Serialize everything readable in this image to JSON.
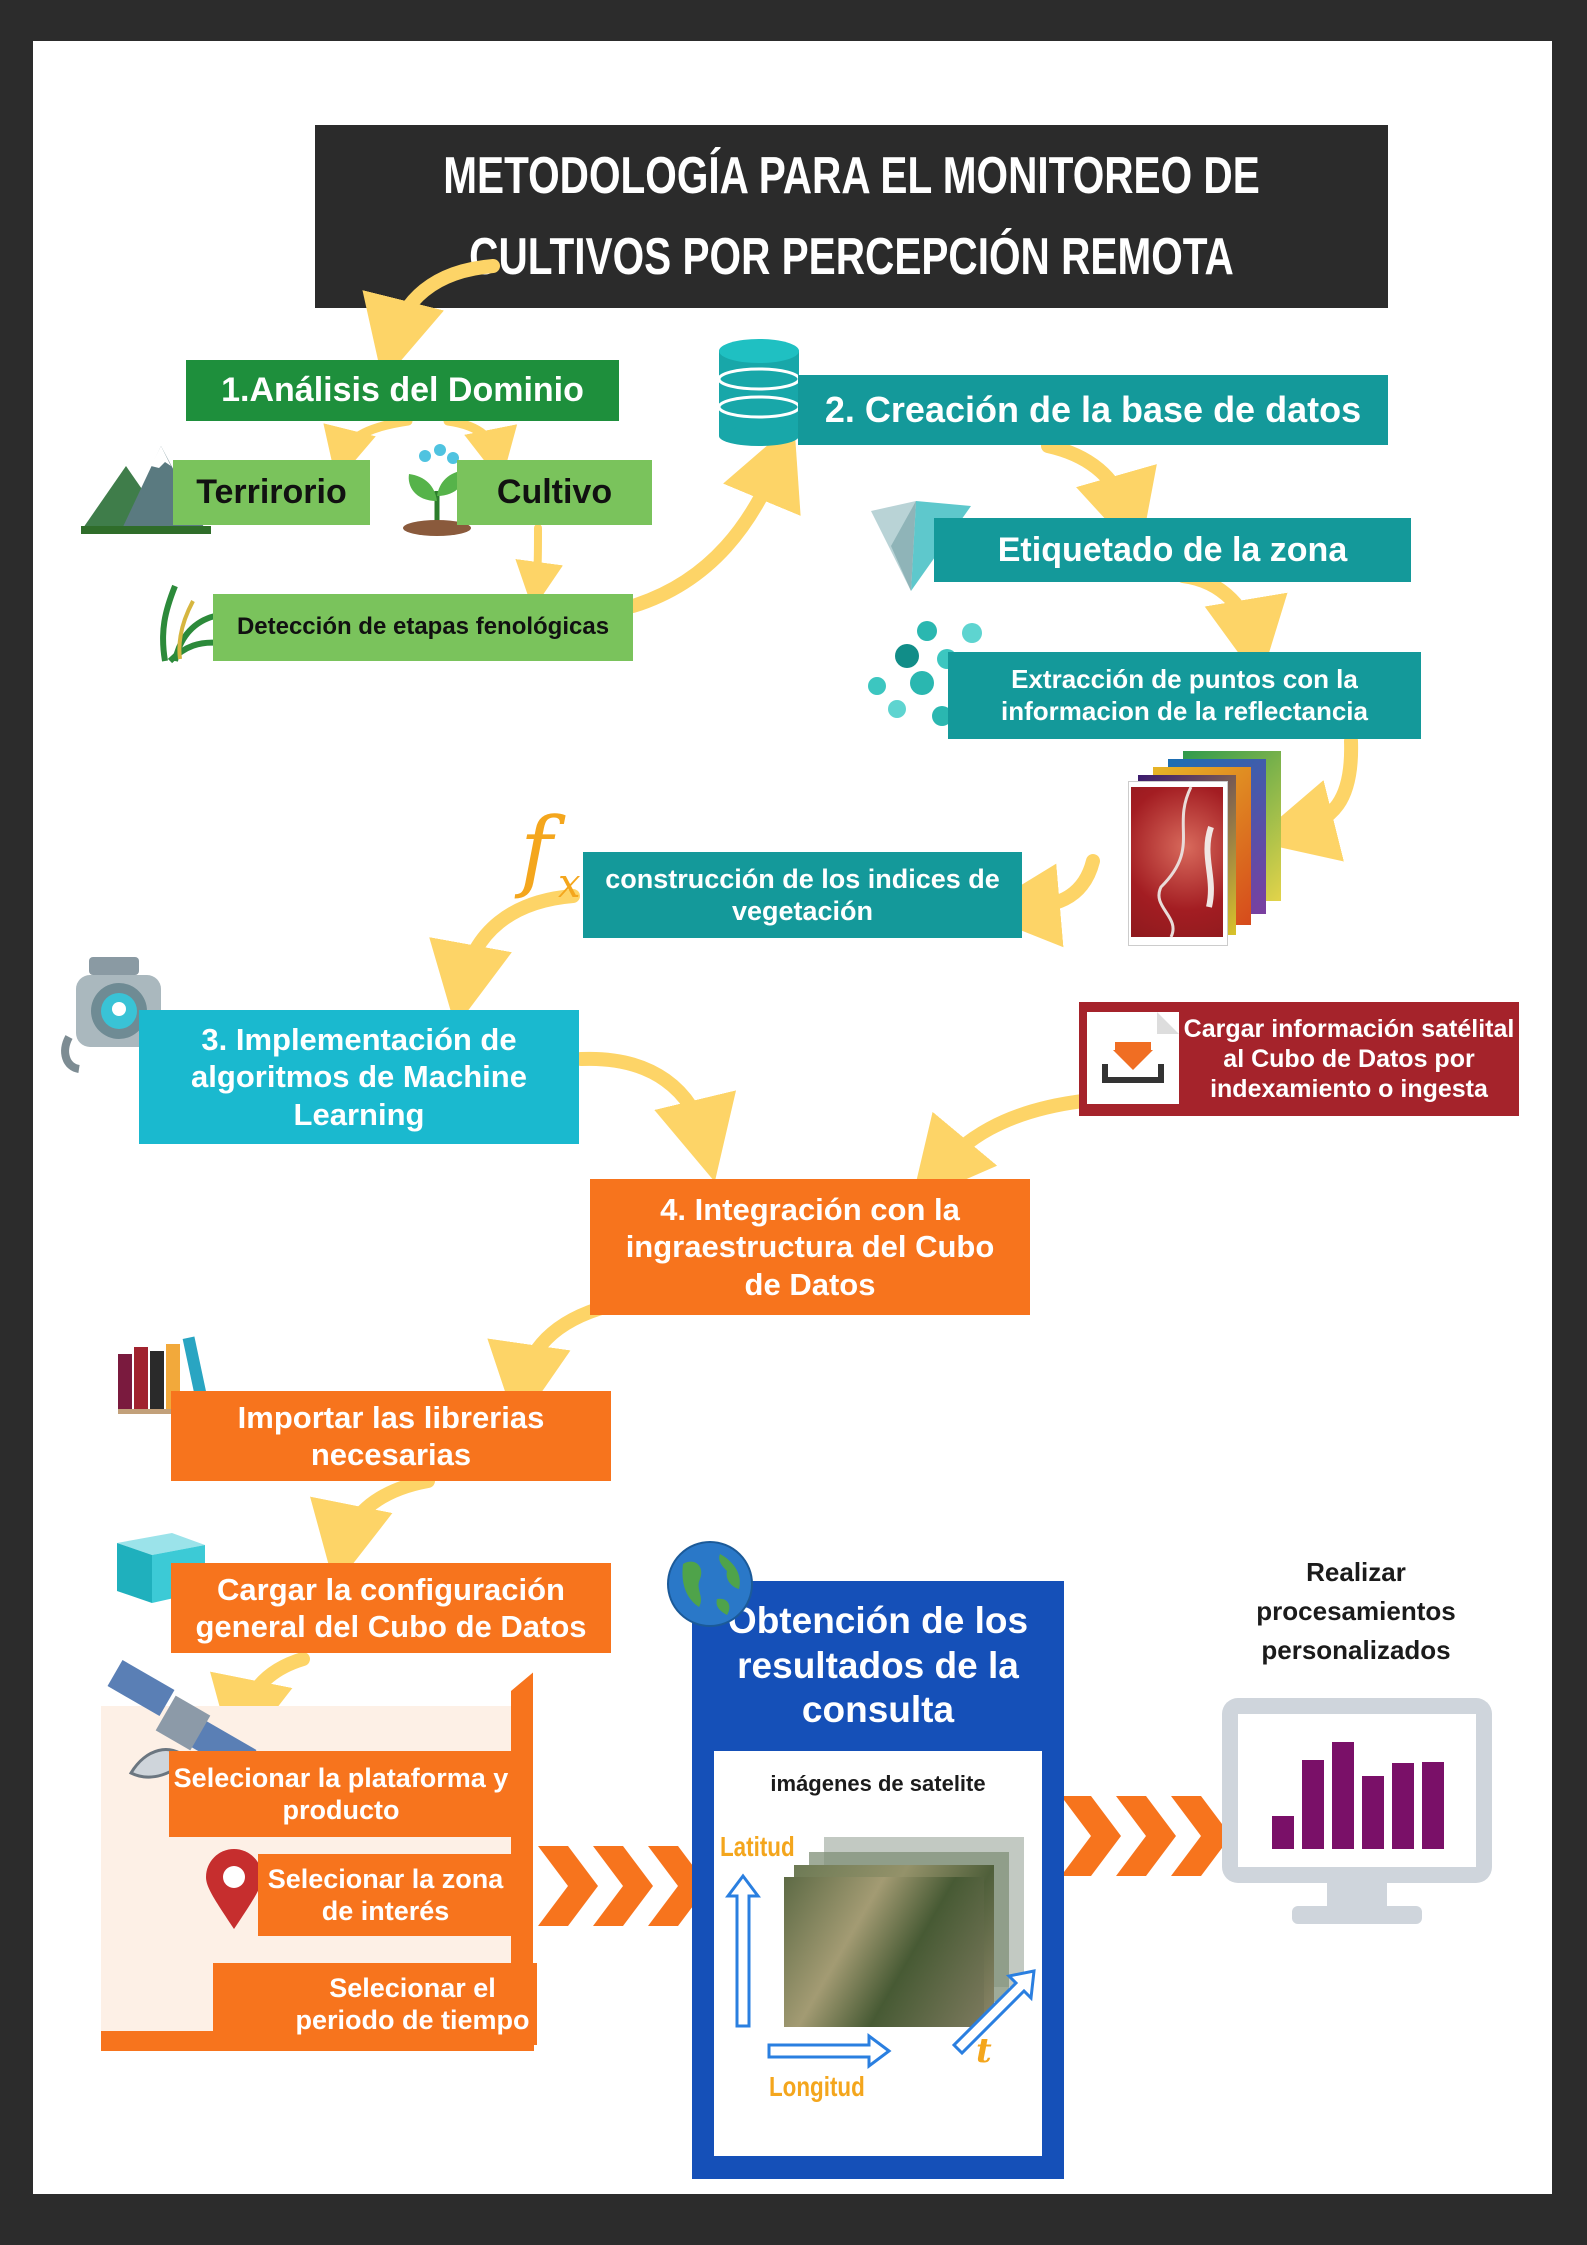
{
  "title": "METODOLOGÍA PARA EL MONITOREO DE CULTIVOS POR PERCEPCIÓN REMOTA",
  "steps": {
    "domain_analysis": "1.Análisis del Dominio",
    "territory": "Terrirorio",
    "crop": "Cultivo",
    "phenology": "Detección  de etapas fenológicas",
    "database": "2. Creación de la base de datos",
    "labeling": "Etiquetado de la zona",
    "extraction": "Extracción de puntos con la informacion de  la reflectancia",
    "indices": "construcción de los indices de vegetación",
    "ml": "3. Implementación de algoritmos de Machine Learning",
    "load_satellite": "Cargar información satélital al Cubo de Datos por indexamiento o ingesta",
    "integration": "4. Integración con la ingraestructura del Cubo de Datos",
    "import_libs": "Importar las librerias necesarias",
    "load_config": "Cargar la configuración general del Cubo de Datos",
    "select_platform": "Selecionar la plataforma y producto",
    "select_zone": "Selecionar la zona de interés",
    "select_period": "Selecionar el periodo de tiempo",
    "results": "Obtención de los resultados de la consulta",
    "satellite_images": "imágenes de satelite",
    "latitude": "Latitud",
    "longitude": "Longitud",
    "time_axis": "t",
    "custom_processing": "Realizar procesamientos personalizados",
    "fx_symbol": "f"
  },
  "colors": {
    "background": "#2c2c2c",
    "title_bg": "#2b2b2b",
    "green_dark": "#1e8f3c",
    "green_light": "#7ac35c",
    "teal": "#14999a",
    "cyan": "#1ab9cf",
    "orange": "#f7741d",
    "red": "#a5232b",
    "blue": "#1550b8",
    "arrow_yellow": "#fdd467",
    "purple_bars": "#7a1068"
  },
  "icons": [
    "mountains-icon",
    "plant-icon",
    "grass-icon",
    "database-icon",
    "paper-plane-icon",
    "dots-icon",
    "satellite-stack-icon",
    "fx-icon",
    "robot-icon",
    "download-icon",
    "books-icon",
    "cube-icon",
    "satellite-icon",
    "map-pin-icon",
    "clock-icon",
    "globe-icon",
    "monitor-chart-icon"
  ]
}
